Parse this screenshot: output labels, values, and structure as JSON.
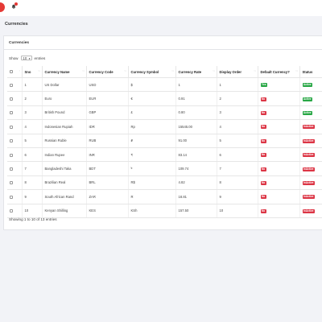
{
  "page": {
    "title": "Currencies"
  },
  "card": {
    "title": "Currencies"
  },
  "length": {
    "show": "Show",
    "value": "10",
    "entries": "entries"
  },
  "table": {
    "headers": [
      "",
      "Sno",
      "Currency Name",
      "Currency Code",
      "Currency Symbol",
      "Currency Rate",
      "Display Order",
      "Default Currency?",
      "Status"
    ],
    "rows": [
      {
        "sno": "1",
        "name": "US Dollar",
        "code": "USD",
        "symbol": "$",
        "rate": "1",
        "order": "1",
        "default": "Yes",
        "status": "Active"
      },
      {
        "sno": "2",
        "name": "Euro",
        "code": "EUR",
        "symbol": "€",
        "rate": "0.91",
        "order": "2",
        "default": "No",
        "status": "Active"
      },
      {
        "sno": "3",
        "name": "British Pound",
        "code": "GBP",
        "symbol": "£",
        "rate": "0.80",
        "order": "3",
        "default": "No",
        "status": "Active"
      },
      {
        "sno": "4",
        "name": "Indonesian Rupiah",
        "code": "IDR",
        "symbol": "Rp",
        "rate": "15545.00",
        "order": "4",
        "default": "No",
        "status": "InActive"
      },
      {
        "sno": "5",
        "name": "Russian Ruble",
        "code": "RUB",
        "symbol": "₽",
        "rate": "91.00",
        "order": "5",
        "default": "No",
        "status": "InActive"
      },
      {
        "sno": "6",
        "name": "Indian Rupee",
        "code": "INR",
        "symbol": "₹",
        "rate": "83.14",
        "order": "6",
        "default": "No",
        "status": "InActive"
      },
      {
        "sno": "7",
        "name": "Bangladeshi Taka",
        "code": "BDT",
        "symbol": "৳",
        "rate": "109.74",
        "order": "7",
        "default": "No",
        "status": "InActive"
      },
      {
        "sno": "8",
        "name": "Brazilian Real",
        "code": "BRL",
        "symbol": "R$",
        "rate": "4.82",
        "order": "8",
        "default": "No",
        "status": "InActive"
      },
      {
        "sno": "9",
        "name": "South African Rand",
        "code": "ZAR",
        "symbol": "R",
        "rate": "18.81",
        "order": "9",
        "default": "No",
        "status": "InActive"
      },
      {
        "sno": "10",
        "name": "Kenyan Shilling",
        "code": "KES",
        "symbol": "KSh",
        "rate": "157.50",
        "order": "10",
        "default": "No",
        "status": "InActive"
      }
    ]
  },
  "info": "Showing 1 to 10 of 13 entries",
  "colors": {
    "yes": "#28a745",
    "no": "#dc3545",
    "active": "#28a745",
    "inactive": "#dc3545"
  }
}
